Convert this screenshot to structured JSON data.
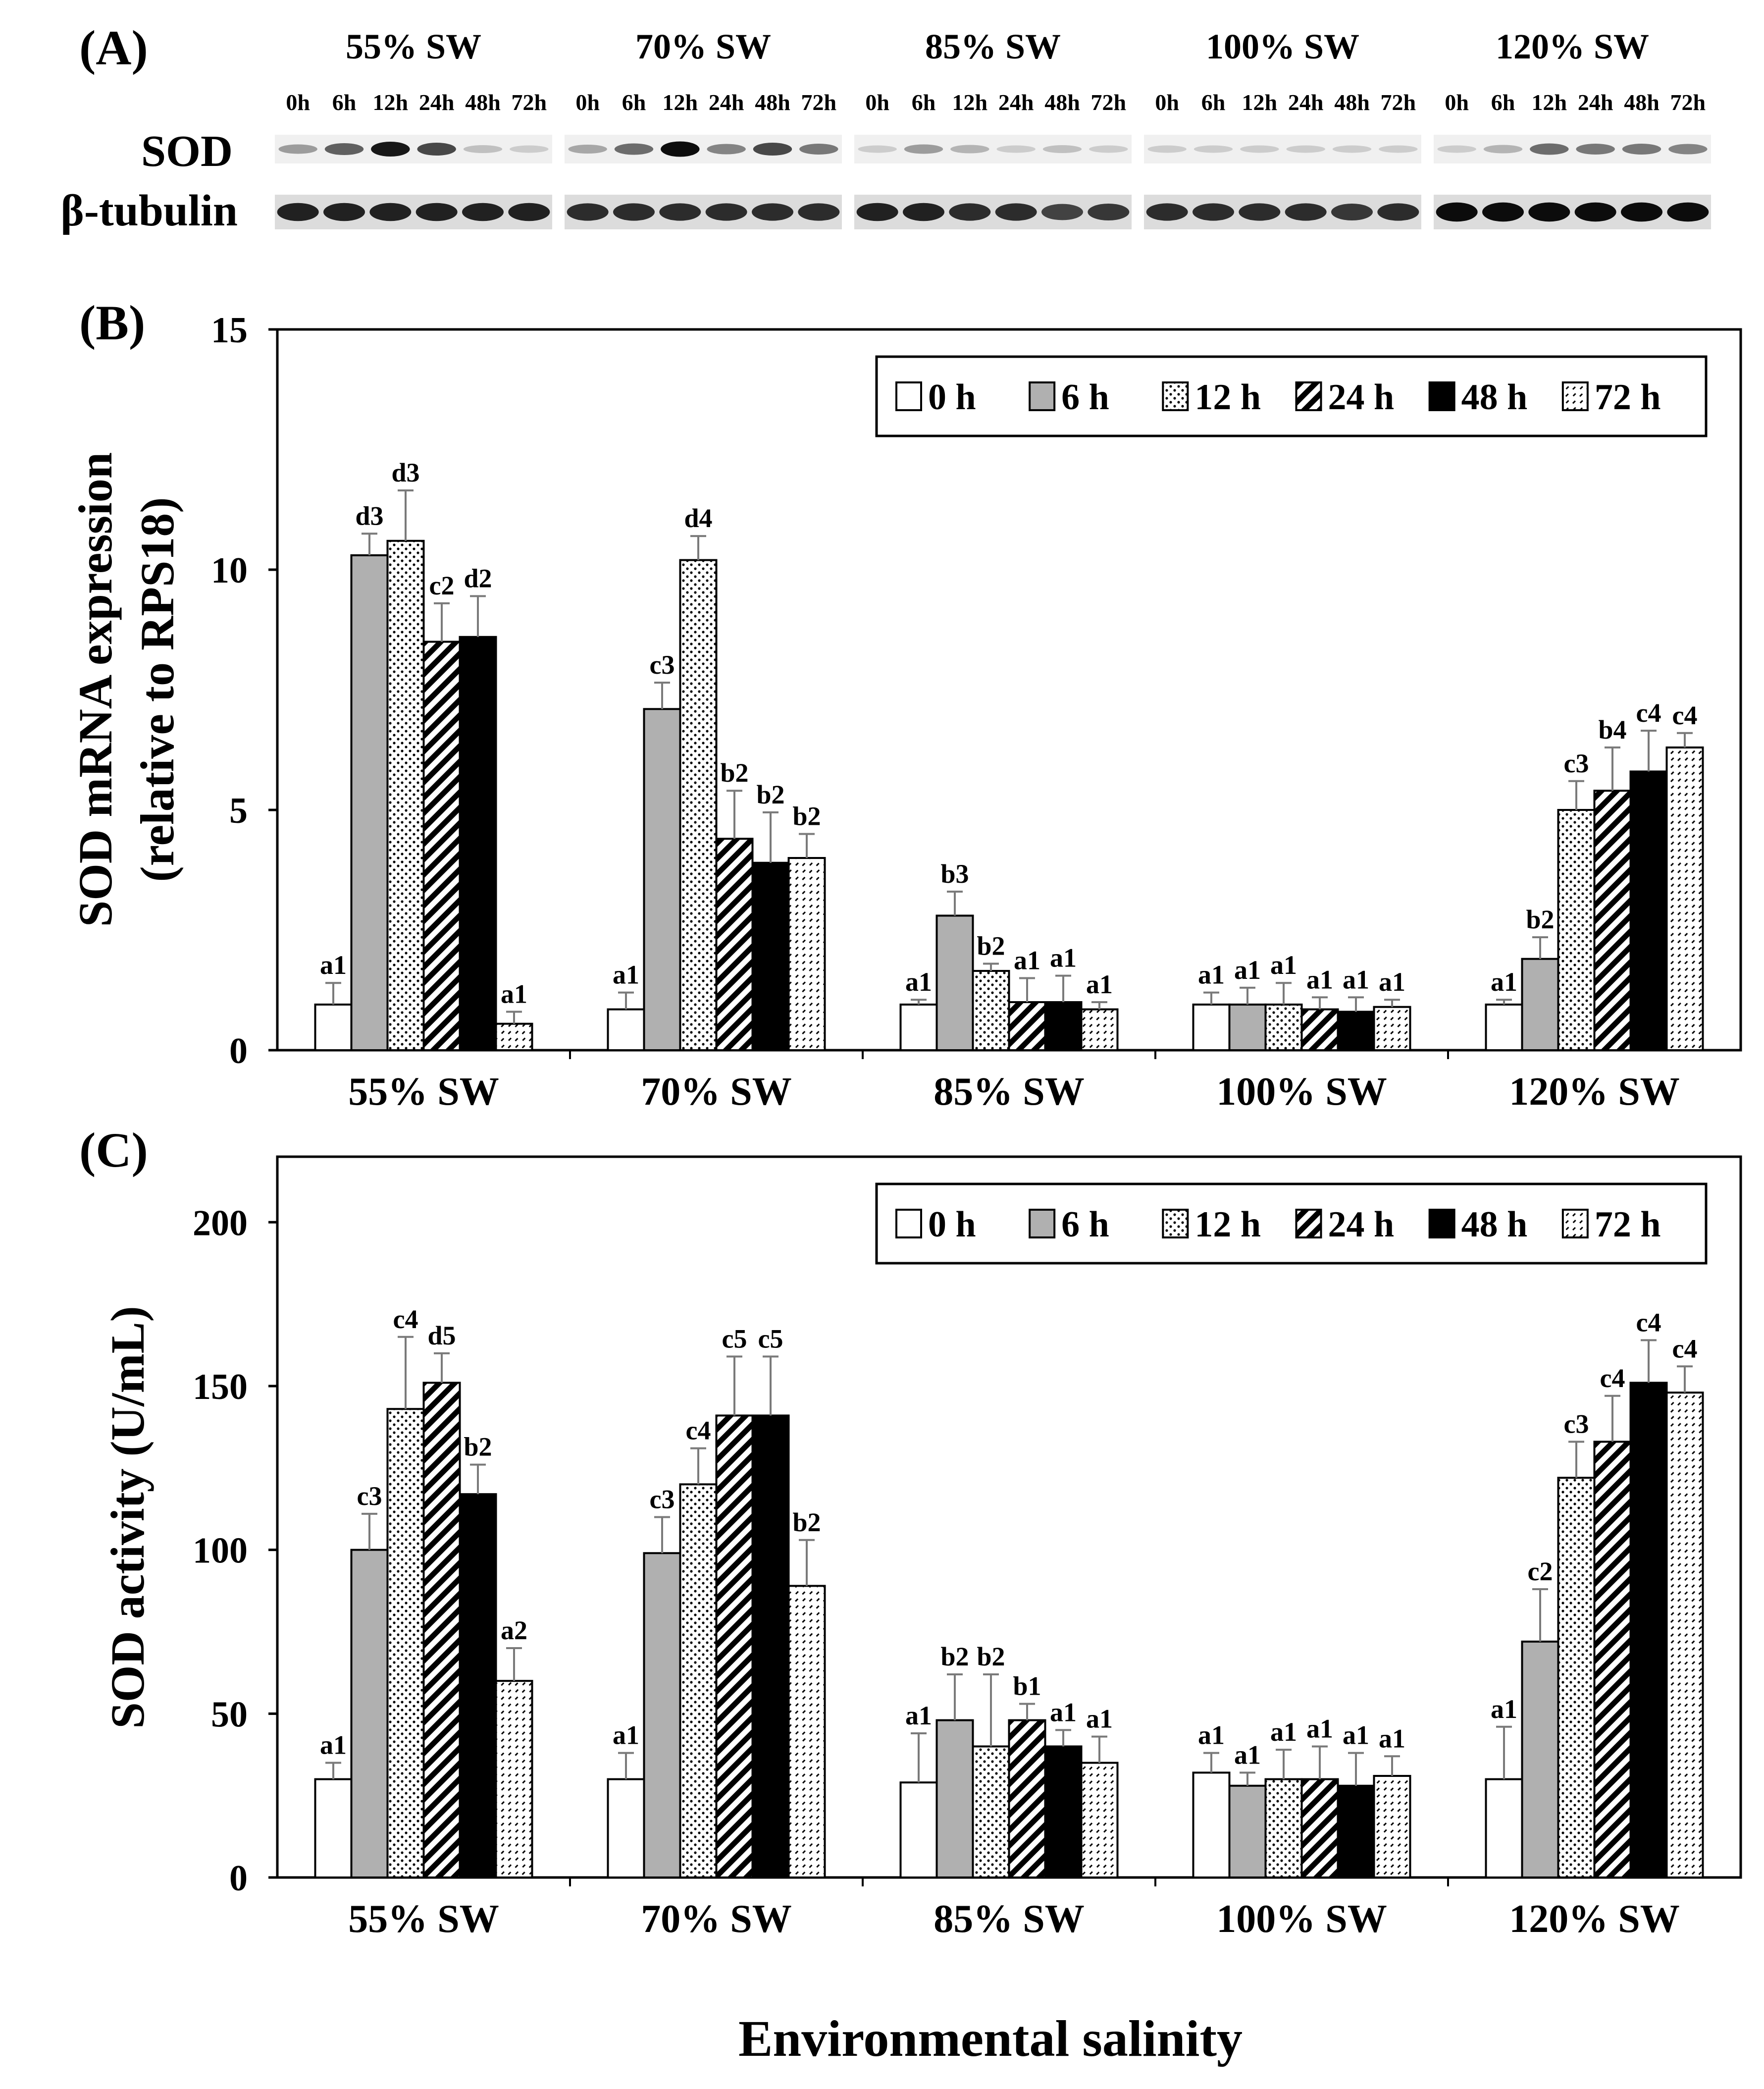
{
  "figure": {
    "panel_a_label": "(A)",
    "panel_b_label": "(B)",
    "panel_c_label": "(C)",
    "x_title": "Environmental salinity"
  },
  "colors": {
    "background": "#ffffff",
    "axis": "#000000",
    "bar_gray": "#b0b0b0",
    "bar_black": "#000000",
    "errbar": "#7a7a7a"
  },
  "blot": {
    "groups": [
      "55% SW",
      "70% SW",
      "85% SW",
      "100% SW",
      "120% SW"
    ],
    "timepoints": [
      "0h",
      "6h",
      "12h",
      "24h",
      "48h",
      "72h"
    ],
    "row_labels": [
      "SOD",
      "β-tubulin"
    ],
    "sod_intensity": [
      [
        0.35,
        0.6,
        0.9,
        0.7,
        0.2,
        0.15
      ],
      [
        0.3,
        0.55,
        0.95,
        0.45,
        0.7,
        0.5
      ],
      [
        0.15,
        0.35,
        0.25,
        0.15,
        0.2,
        0.15
      ],
      [
        0.15,
        0.15,
        0.15,
        0.15,
        0.15,
        0.15
      ],
      [
        0.15,
        0.25,
        0.55,
        0.5,
        0.5,
        0.45
      ]
    ],
    "tubulin_intensity": [
      [
        0.85,
        0.85,
        0.85,
        0.85,
        0.85,
        0.85
      ],
      [
        0.8,
        0.8,
        0.8,
        0.8,
        0.8,
        0.8
      ],
      [
        0.85,
        0.85,
        0.8,
        0.8,
        0.7,
        0.75
      ],
      [
        0.8,
        0.8,
        0.8,
        0.8,
        0.75,
        0.8
      ],
      [
        0.95,
        0.95,
        0.95,
        0.95,
        0.95,
        0.95
      ]
    ]
  },
  "chart_data": [
    {
      "type": "bar",
      "panel": "(B)",
      "title": "",
      "xlabel": "",
      "ylabel": "SOD mRNA expression",
      "ylabel2": "(relative to RPS18)",
      "ylim": [
        0,
        15
      ],
      "yticks": [
        0,
        5,
        10,
        15
      ],
      "categories": [
        "55% SW",
        "70% SW",
        "85% SW",
        "100% SW",
        "120% SW"
      ],
      "legend_position": "top-right",
      "series": [
        {
          "name": "0 h",
          "pattern": "white",
          "values": [
            0.95,
            0.85,
            0.95,
            0.95,
            0.95
          ],
          "errors": [
            0.45,
            0.35,
            0.1,
            0.25,
            0.1
          ],
          "labels": [
            "a1",
            "a1",
            "a1",
            "a1",
            "a1"
          ]
        },
        {
          "name": "6 h",
          "pattern": "gray",
          "values": [
            10.3,
            7.1,
            2.8,
            0.95,
            1.9
          ],
          "errors": [
            0.45,
            0.55,
            0.5,
            0.35,
            0.45
          ],
          "labels": [
            "d3",
            "c3",
            "b3",
            "a1",
            "b2"
          ]
        },
        {
          "name": "12 h",
          "pattern": "dots",
          "values": [
            10.6,
            10.2,
            1.65,
            0.95,
            5.0
          ],
          "errors": [
            1.05,
            0.5,
            0.15,
            0.45,
            0.6
          ],
          "labels": [
            "d3",
            "d4",
            "b2",
            "a1",
            "c3"
          ]
        },
        {
          "name": "24 h",
          "pattern": "hatch",
          "values": [
            8.5,
            4.4,
            1.0,
            0.85,
            5.4
          ],
          "errors": [
            0.8,
            1.0,
            0.5,
            0.25,
            0.9
          ],
          "labels": [
            "c2",
            "b2",
            "a1",
            "a1",
            "b4"
          ]
        },
        {
          "name": "48 h",
          "pattern": "black",
          "values": [
            8.6,
            3.9,
            1.0,
            0.8,
            5.8
          ],
          "errors": [
            0.85,
            1.05,
            0.55,
            0.3,
            0.85
          ],
          "labels": [
            "d2",
            "b2",
            "a1",
            "a1",
            "c4"
          ]
        },
        {
          "name": "72 h",
          "pattern": "lightdash",
          "values": [
            0.55,
            4.0,
            0.85,
            0.9,
            6.3
          ],
          "errors": [
            0.25,
            0.5,
            0.15,
            0.15,
            0.3
          ],
          "labels": [
            "a1",
            "b2",
            "a1",
            "a1",
            "c4"
          ]
        }
      ]
    },
    {
      "type": "bar",
      "panel": "(C)",
      "title": "",
      "xlabel": "Environmental salinity",
      "ylabel": "SOD activity (U/mL)",
      "ylim": [
        0,
        220
      ],
      "yticks": [
        0,
        50,
        100,
        150,
        200
      ],
      "categories": [
        "55% SW",
        "70% SW",
        "85% SW",
        "100% SW",
        "120% SW"
      ],
      "legend_position": "top-right",
      "series": [
        {
          "name": "0 h",
          "pattern": "white",
          "values": [
            30,
            30,
            29,
            32,
            30
          ],
          "errors": [
            5,
            8,
            15,
            6,
            16
          ],
          "labels": [
            "a1",
            "a1",
            "a1",
            "a1",
            "a1"
          ]
        },
        {
          "name": "6 h",
          "pattern": "gray",
          "values": [
            100,
            99,
            48,
            28,
            72
          ],
          "errors": [
            11,
            11,
            14,
            4,
            16
          ],
          "labels": [
            "c3",
            "c3",
            "b2",
            "a1",
            "c2"
          ]
        },
        {
          "name": "12 h",
          "pattern": "dots",
          "values": [
            143,
            120,
            40,
            30,
            122
          ],
          "errors": [
            22,
            11,
            22,
            9,
            11
          ],
          "labels": [
            "c4",
            "c4",
            "b2",
            "a1",
            "c3"
          ]
        },
        {
          "name": "24 h",
          "pattern": "hatch",
          "values": [
            151,
            141,
            48,
            30,
            133
          ],
          "errors": [
            9,
            18,
            5,
            10,
            14
          ],
          "labels": [
            "d5",
            "c5",
            "b1",
            "a1",
            "c4"
          ]
        },
        {
          "name": "48 h",
          "pattern": "black",
          "values": [
            117,
            141,
            40,
            28,
            151
          ],
          "errors": [
            9,
            18,
            5,
            10,
            13
          ],
          "labels": [
            "b2",
            "c5",
            "a1",
            "a1",
            "c4"
          ]
        },
        {
          "name": "72 h",
          "pattern": "lightdash",
          "values": [
            60,
            89,
            35,
            31,
            148
          ],
          "errors": [
            10,
            14,
            8,
            6,
            8
          ],
          "labels": [
            "a2",
            "b2",
            "a1",
            "a1",
            "c4"
          ]
        }
      ]
    }
  ]
}
